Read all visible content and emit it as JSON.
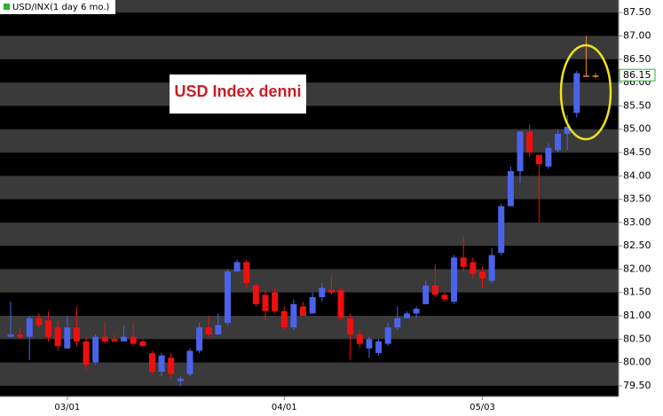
{
  "chart_data": {
    "type": "candlestick",
    "title": "USD/INX(1 day 6 mo.)",
    "annotation": "USD Index denni",
    "categories": [
      null,
      null,
      null,
      null,
      null,
      null,
      "03/01",
      null,
      null,
      null,
      null,
      null,
      null,
      null,
      null,
      null,
      null,
      null,
      null,
      null,
      null,
      null,
      null,
      null,
      null,
      null,
      null,
      null,
      null,
      "04/01",
      null,
      null,
      null,
      null,
      null,
      null,
      null,
      null,
      null,
      null,
      null,
      null,
      null,
      null,
      null,
      null,
      null,
      null,
      null,
      null,
      "05/03",
      null,
      null,
      null,
      null,
      null,
      null,
      null,
      null,
      null,
      null,
      null,
      null
    ],
    "open": [
      80.55,
      80.6,
      80.55,
      80.95,
      80.9,
      80.75,
      80.3,
      80.75,
      80.45,
      80.0,
      80.55,
      80.5,
      80.45,
      80.55,
      80.45,
      80.2,
      79.8,
      80.1,
      79.6,
      79.75,
      80.25,
      80.75,
      80.6,
      80.85,
      81.95,
      82.15,
      81.65,
      81.45,
      81.5,
      81.1,
      80.75,
      81.2,
      81.05,
      81.4,
      81.55,
      81.55,
      80.95,
      80.6,
      80.3,
      80.2,
      80.4,
      80.75,
      80.95,
      81.05,
      81.25,
      81.65,
      81.45,
      81.3,
      82.25,
      82.15,
      81.95,
      81.75,
      82.35,
      83.35,
      84.1,
      84.95,
      84.45,
      84.2,
      84.55,
      84.9,
      85.35,
      86.15,
      86.15
    ],
    "high": [
      81.3,
      80.75,
      81.0,
      81.05,
      81.1,
      80.9,
      81.0,
      81.2,
      80.55,
      80.6,
      80.85,
      80.6,
      80.8,
      80.85,
      80.5,
      80.25,
      80.2,
      80.2,
      79.7,
      80.3,
      80.85,
      81.0,
      81.05,
      82.0,
      82.2,
      82.2,
      81.7,
      81.55,
      81.6,
      81.2,
      81.35,
      81.3,
      81.5,
      81.7,
      81.85,
      81.6,
      81.05,
      80.7,
      80.55,
      80.5,
      80.85,
      81.2,
      81.1,
      81.2,
      81.75,
      82.1,
      81.5,
      82.3,
      82.7,
      82.25,
      82.05,
      82.45,
      83.4,
      84.2,
      84.95,
      85.1,
      84.45,
      84.7,
      85.0,
      85.3,
      86.25,
      87.0,
      86.2
    ],
    "low": [
      80.55,
      80.5,
      80.05,
      80.75,
      80.45,
      80.25,
      80.3,
      80.35,
      79.85,
      79.95,
      80.4,
      80.45,
      80.45,
      80.35,
      80.35,
      79.75,
      79.7,
      79.65,
      79.5,
      79.7,
      80.2,
      80.55,
      80.6,
      80.8,
      81.95,
      81.6,
      81.2,
      80.9,
      81.05,
      80.7,
      80.7,
      81.0,
      81.05,
      81.3,
      81.45,
      80.9,
      80.05,
      80.3,
      80.1,
      80.15,
      80.35,
      80.7,
      80.95,
      80.95,
      81.25,
      81.4,
      81.3,
      81.25,
      81.95,
      81.8,
      81.6,
      81.7,
      82.3,
      83.35,
      83.85,
      84.4,
      83.0,
      84.15,
      84.5,
      84.55,
      85.25,
      86.15,
      86.1
    ],
    "close": [
      80.6,
      80.55,
      80.95,
      80.8,
      80.55,
      80.35,
      80.75,
      80.45,
      79.95,
      80.55,
      80.45,
      80.45,
      80.55,
      80.4,
      80.35,
      79.8,
      80.15,
      79.75,
      79.65,
      80.25,
      80.75,
      80.6,
      80.8,
      81.95,
      82.15,
      81.7,
      81.25,
      81.1,
      81.1,
      80.75,
      81.25,
      81.0,
      81.4,
      81.6,
      81.5,
      80.95,
      80.6,
      80.4,
      80.5,
      80.45,
      80.75,
      80.95,
      81.05,
      81.15,
      81.65,
      81.45,
      81.35,
      82.25,
      82.05,
      81.9,
      81.8,
      82.3,
      83.35,
      84.1,
      84.95,
      84.5,
      84.25,
      84.6,
      84.9,
      85.05,
      86.2,
      86.15,
      86.15
    ],
    "up_color": "#4b63ea",
    "down_color": "#ee1010",
    "last_value": 86.15,
    "ylim": [
      79.27,
      87.77
    ],
    "yticks": [
      {
        "value": 79.5,
        "label": "79.50"
      },
      {
        "value": 80,
        "label": "80.00"
      },
      {
        "value": 80.5,
        "label": "80.50"
      },
      {
        "value": 81,
        "label": "81.00"
      },
      {
        "value": 81.5,
        "label": "81.50"
      },
      {
        "value": 82,
        "label": "82.00"
      },
      {
        "value": 82.5,
        "label": "82.50"
      },
      {
        "value": 83,
        "label": "83.00"
      },
      {
        "value": 83.5,
        "label": "83.50"
      },
      {
        "value": 84,
        "label": "84.00"
      },
      {
        "value": 84.5,
        "label": "84.50"
      },
      {
        "value": 85,
        "label": "85.00"
      },
      {
        "value": 85.5,
        "label": "85.50"
      },
      {
        "value": 86,
        "label": "86.00"
      },
      {
        "value": 86.5,
        "label": "86.50"
      },
      {
        "value": 87,
        "label": "87.00"
      },
      {
        "value": 87.5,
        "label": "87.50"
      }
    ]
  }
}
